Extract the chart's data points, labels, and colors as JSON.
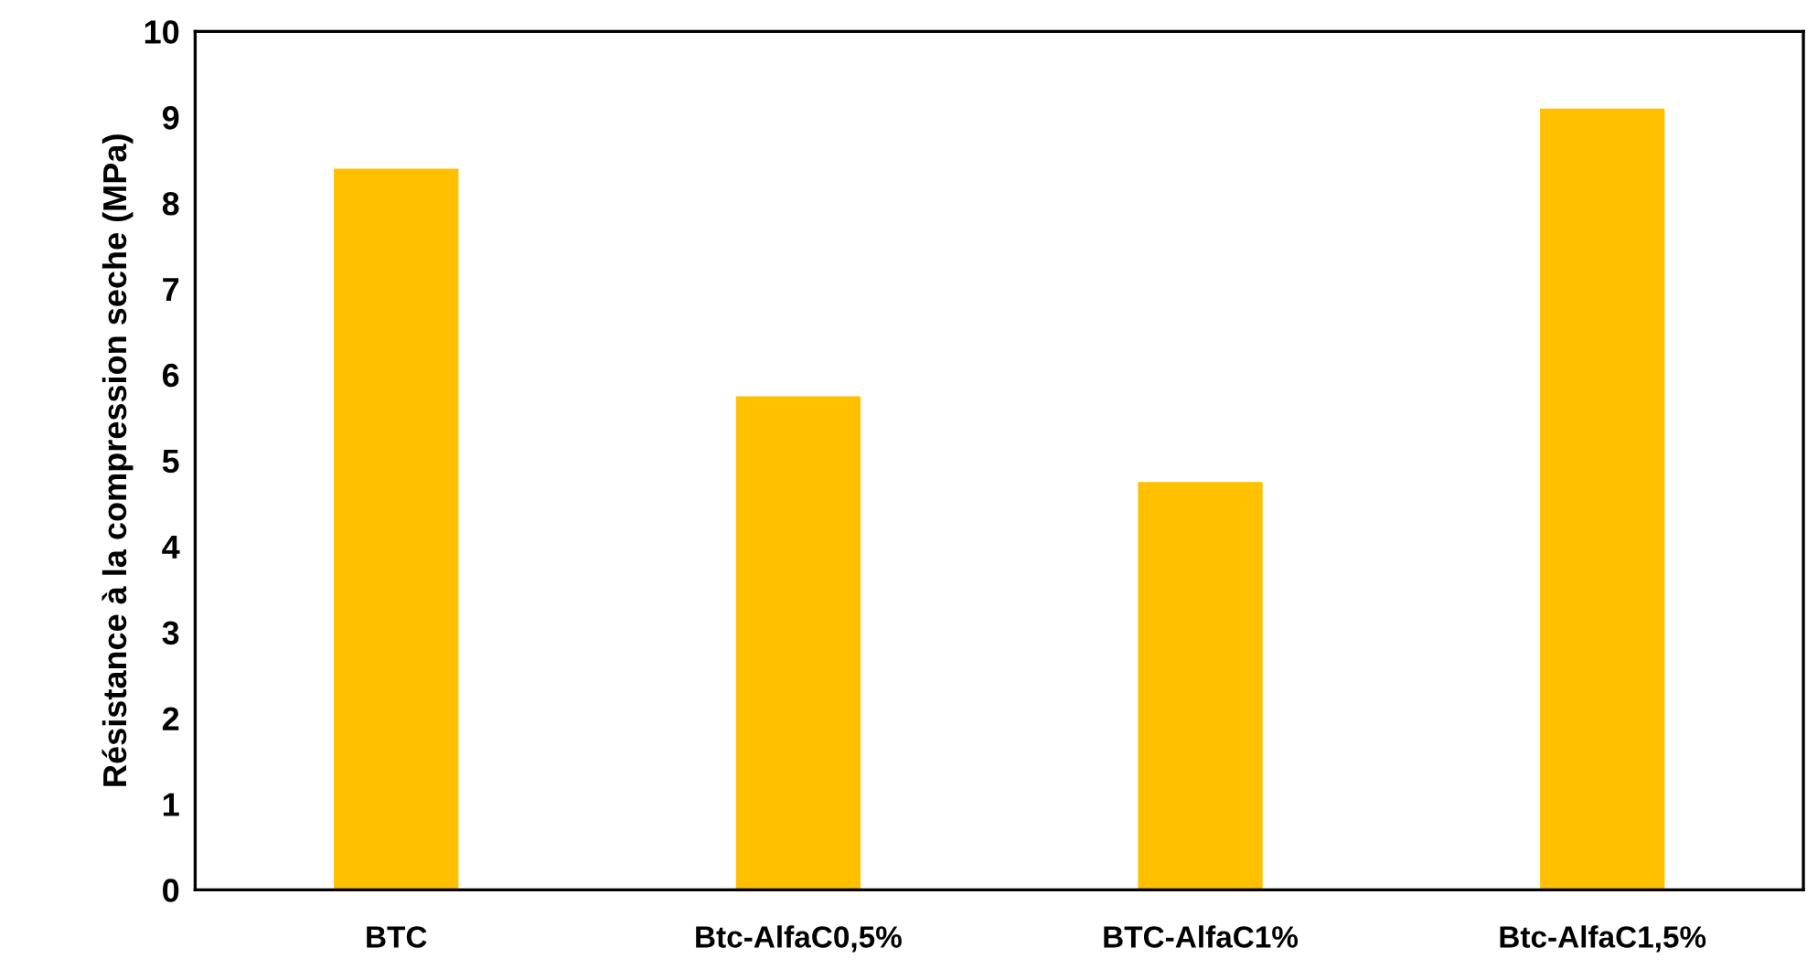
{
  "chart_data": {
    "type": "bar",
    "ylabel": "Résistance à la compression seche (MPa)",
    "categories": [
      "BTC",
      "Btc-AlfaC0,5%",
      "BTC-AlfaC1%",
      "Btc-AlfaC1,5%"
    ],
    "values": [
      8.4,
      5.75,
      4.75,
      9.1
    ],
    "color": "#ffc000",
    "ylim": [
      0,
      10
    ],
    "yticks": [
      0,
      1,
      2,
      3,
      4,
      5,
      6,
      7,
      8,
      9,
      10
    ],
    "grid": false,
    "legend": false
  }
}
